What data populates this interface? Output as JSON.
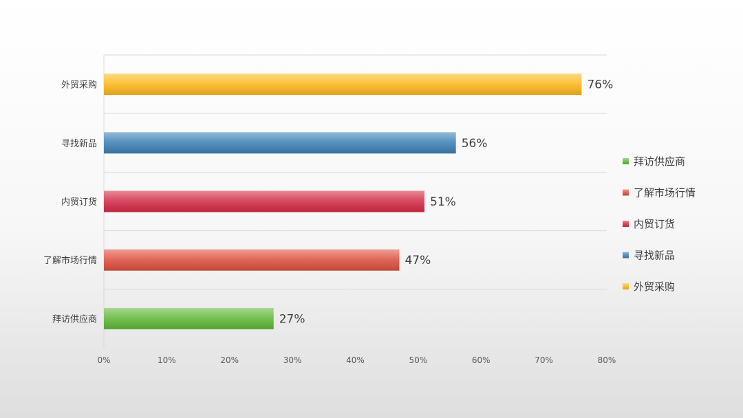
{
  "chart_data": {
    "type": "bar",
    "orientation": "horizontal",
    "title": "",
    "xlabel": "",
    "ylabel": "",
    "categories": [
      "拜访供应商",
      "了解市场行情",
      "内贸订货",
      "寻找新品",
      "外贸采购"
    ],
    "values": [
      27,
      47,
      51,
      56,
      76
    ],
    "value_labels": [
      "27%",
      "47%",
      "51%",
      "56%",
      "76%"
    ],
    "colors": [
      "#5fb736",
      "#de4e3f",
      "#d42a45",
      "#3c80b6",
      "#fdb81c"
    ],
    "xlim": [
      0,
      80
    ],
    "xticks": [
      0,
      10,
      20,
      30,
      40,
      50,
      60,
      70,
      80
    ],
    "xtick_labels": [
      "0%",
      "10%",
      "20%",
      "30%",
      "40%",
      "50%",
      "60%",
      "70%",
      "80%"
    ],
    "grid": true,
    "legend_position": "right",
    "legend": [
      "拜访供应商",
      "了解市场行情",
      "内贸订货",
      "寻找新品",
      "外贸采购"
    ]
  }
}
